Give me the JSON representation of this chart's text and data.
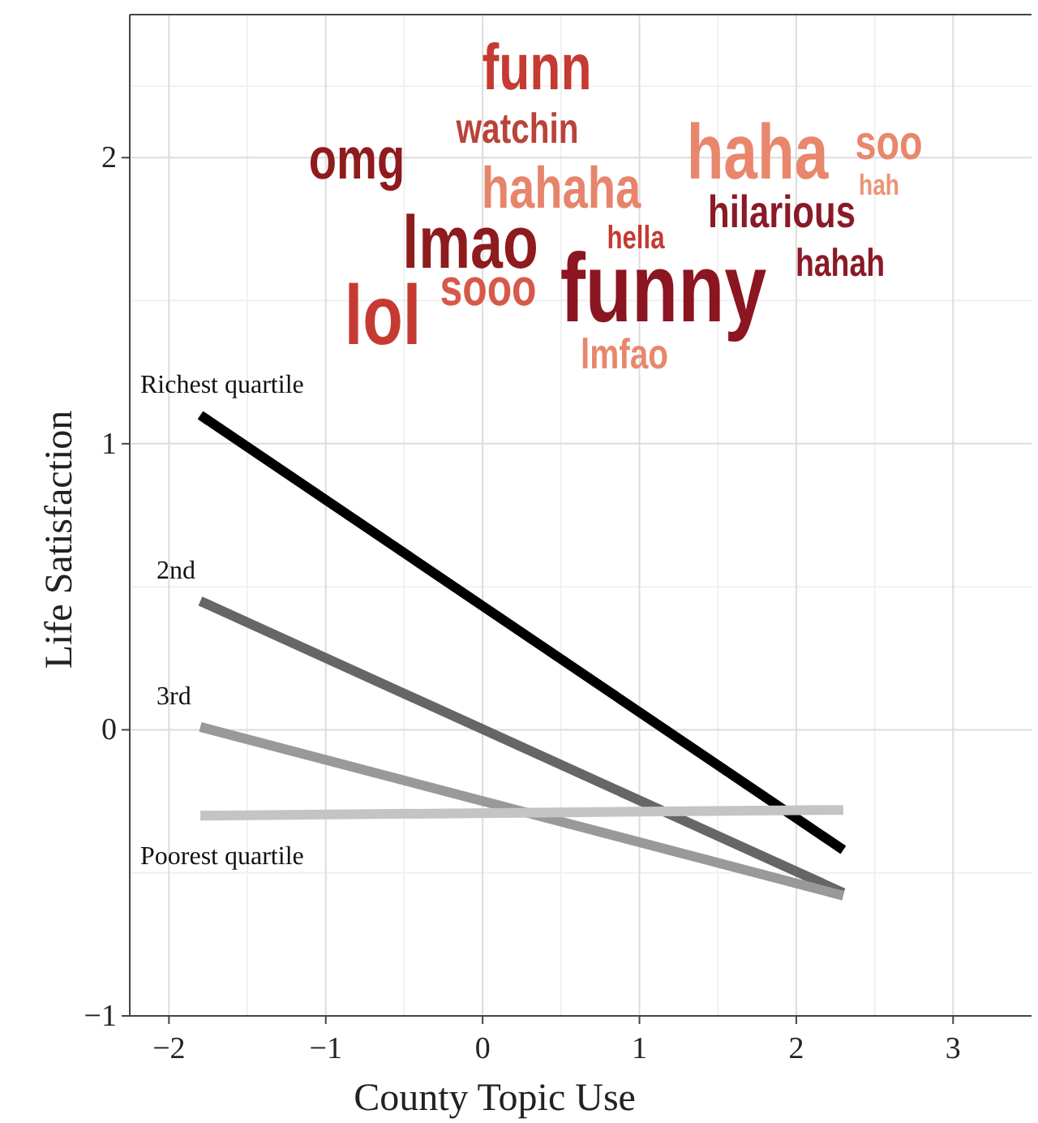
{
  "chart_data": {
    "type": "line",
    "xlabel": "County Topic Use",
    "ylabel": "Life Satisfaction",
    "xlim": [
      -2.25,
      3.5
    ],
    "ylim": [
      -1,
      2.5
    ],
    "xticks": [
      -2,
      -1,
      0,
      1,
      2,
      3
    ],
    "yticks": [
      -1,
      0,
      1,
      2
    ],
    "grid": true,
    "line_style": "solid",
    "marker": "none",
    "x": [
      -1.8,
      2.3
    ],
    "series": [
      {
        "name": "Richest quartile",
        "color": "#000000",
        "values": [
          1.1,
          -0.42
        ]
      },
      {
        "name": "2nd",
        "color": "#666666",
        "values": [
          0.45,
          -0.57
        ]
      },
      {
        "name": "3rd",
        "color": "#999999",
        "values": [
          0.01,
          -0.58
        ]
      },
      {
        "name": "Poorest quartile",
        "color": "#c4c4c4",
        "values": [
          -0.3,
          -0.28
        ]
      }
    ],
    "annotations": [
      "funn",
      "watchin",
      "omg",
      "hahaha",
      "haha",
      "soo",
      "hah",
      "hilarious",
      "lmao",
      "hella",
      "hahah",
      "lol",
      "sooo",
      "funny",
      "lmfao"
    ]
  }
}
